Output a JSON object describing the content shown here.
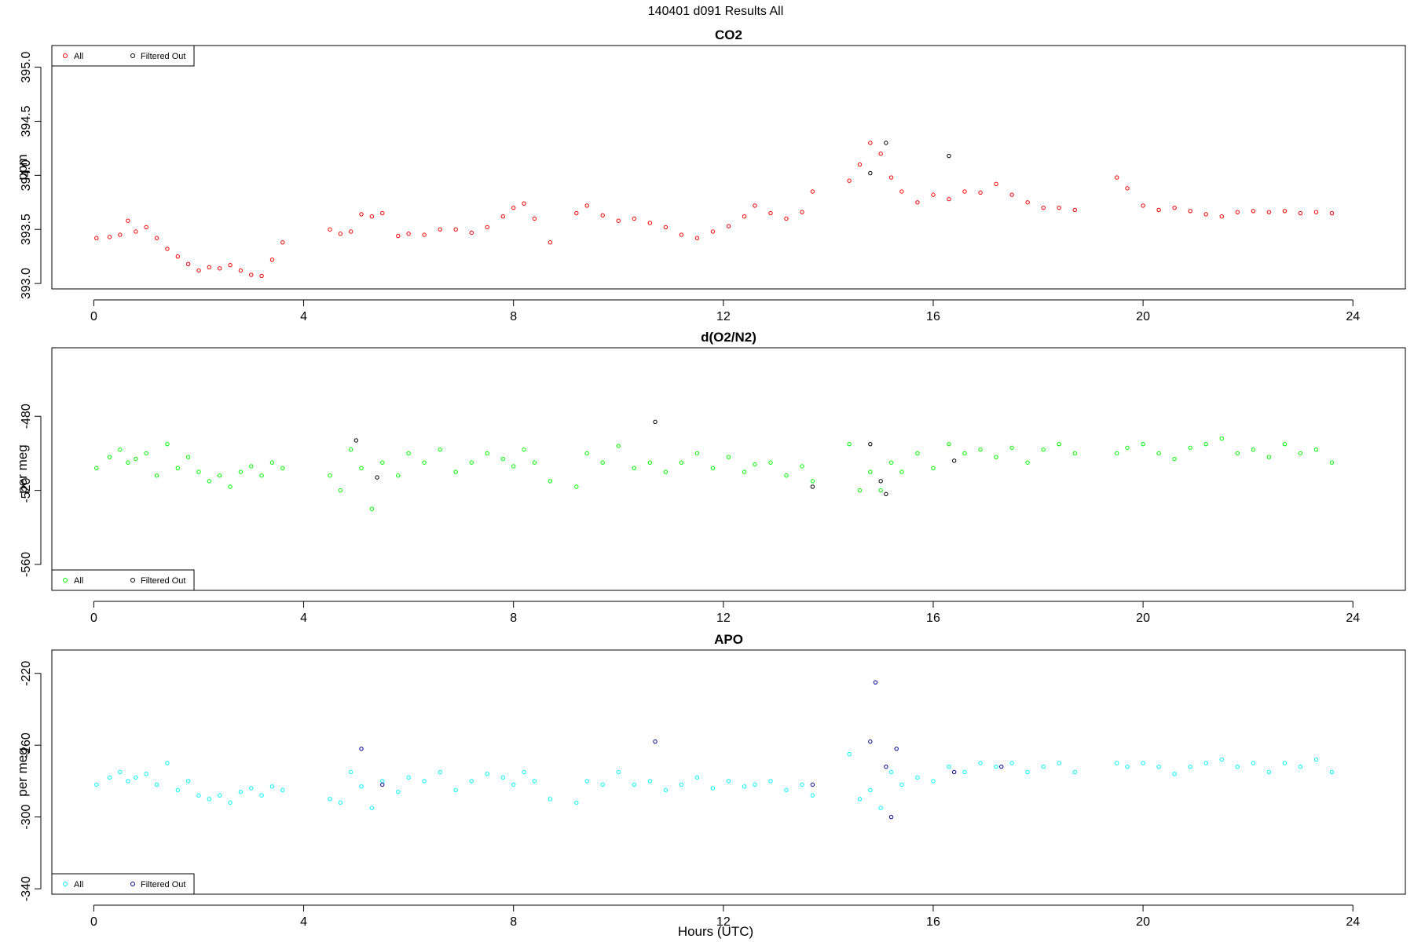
{
  "figure": {
    "main_title": "140401   d091   Results All",
    "xlabel": "Hours (UTC)"
  },
  "chart_data": [
    {
      "type": "scatter",
      "title": "CO2",
      "ylabel": "ppm",
      "xlim": [
        -0.8,
        25.0
      ],
      "ylim": [
        392.95,
        395.2
      ],
      "xticks": [
        0,
        4,
        8,
        12,
        16,
        20,
        24
      ],
      "yticks": [
        393.0,
        393.5,
        394.0,
        394.5,
        395.0
      ],
      "ytick_labels": [
        "393.0",
        "393.5",
        "394.0",
        "394.5",
        "395.0"
      ],
      "legend": {
        "position": "top-left",
        "entries": [
          "All",
          "Filtered Out"
        ]
      },
      "colors": {
        "all": "#ff0000",
        "filtered": "#000000"
      },
      "series": [
        {
          "name": "All",
          "x": [
            0.05,
            0.3,
            0.5,
            0.65,
            0.8,
            1.0,
            1.2,
            1.4,
            1.6,
            1.8,
            2.0,
            2.2,
            2.4,
            2.6,
            2.8,
            3.0,
            3.2,
            3.4,
            3.6,
            4.5,
            4.7,
            4.9,
            5.1,
            5.3,
            5.5,
            5.8,
            6.0,
            6.3,
            6.6,
            6.9,
            7.2,
            7.5,
            7.8,
            8.0,
            8.2,
            8.4,
            8.7,
            9.2,
            9.4,
            9.7,
            10.0,
            10.3,
            10.6,
            10.9,
            11.2,
            11.5,
            11.8,
            12.1,
            12.4,
            12.6,
            12.9,
            13.2,
            13.5,
            13.7,
            14.4,
            14.6,
            14.8,
            15.0,
            15.2,
            15.4,
            15.7,
            16.0,
            16.3,
            16.6,
            16.9,
            17.2,
            17.5,
            17.8,
            18.1,
            18.4,
            18.7,
            19.5,
            19.7,
            20.0,
            20.3,
            20.6,
            20.9,
            21.2,
            21.5,
            21.8,
            22.1,
            22.4,
            22.7,
            23.0,
            23.3,
            23.6
          ],
          "y": [
            393.42,
            393.43,
            393.45,
            393.58,
            393.48,
            393.52,
            393.42,
            393.32,
            393.25,
            393.18,
            393.12,
            393.15,
            393.14,
            393.17,
            393.12,
            393.08,
            393.07,
            393.22,
            393.38,
            393.5,
            393.46,
            393.48,
            393.64,
            393.62,
            393.65,
            393.44,
            393.46,
            393.45,
            393.5,
            393.5,
            393.47,
            393.52,
            393.62,
            393.7,
            393.74,
            393.6,
            393.38,
            393.65,
            393.72,
            393.63,
            393.58,
            393.6,
            393.56,
            393.52,
            393.45,
            393.42,
            393.48,
            393.53,
            393.62,
            393.72,
            393.65,
            393.6,
            393.66,
            393.85,
            393.95,
            394.1,
            394.3,
            394.2,
            393.98,
            393.85,
            393.75,
            393.82,
            393.78,
            393.85,
            393.84,
            393.92,
            393.82,
            393.75,
            393.7,
            393.7,
            393.68,
            393.98,
            393.88,
            393.72,
            393.68,
            393.7,
            393.67,
            393.64,
            393.62,
            393.66,
            393.67,
            393.66,
            393.67,
            393.65,
            393.66,
            393.65
          ]
        },
        {
          "name": "Filtered Out",
          "x": [
            14.8,
            15.1,
            16.3
          ],
          "y": [
            394.02,
            394.3,
            394.18
          ]
        }
      ]
    },
    {
      "type": "scatter",
      "title": "d(O2/N2)",
      "ylabel": "per meg",
      "xlim": [
        -0.8,
        25.0
      ],
      "ylim": [
        -574,
        -443
      ],
      "xticks": [
        0,
        4,
        8,
        12,
        16,
        20,
        24
      ],
      "yticks": [
        -560,
        -520,
        -480
      ],
      "ytick_labels": [
        "-560",
        "-520",
        "-480"
      ],
      "legend": {
        "position": "bottom-left",
        "entries": [
          "All",
          "Filtered Out"
        ]
      },
      "colors": {
        "all": "#00ff00",
        "filtered": "#000000"
      },
      "series": [
        {
          "name": "All",
          "x": [
            0.05,
            0.3,
            0.5,
            0.65,
            0.8,
            1.0,
            1.2,
            1.4,
            1.6,
            1.8,
            2.0,
            2.2,
            2.4,
            2.6,
            2.8,
            3.0,
            3.2,
            3.4,
            3.6,
            4.5,
            4.7,
            4.9,
            5.1,
            5.3,
            5.5,
            5.8,
            6.0,
            6.3,
            6.6,
            6.9,
            7.2,
            7.5,
            7.8,
            8.0,
            8.2,
            8.4,
            8.7,
            9.2,
            9.4,
            9.7,
            10.0,
            10.3,
            10.6,
            10.9,
            11.2,
            11.5,
            11.8,
            12.1,
            12.4,
            12.6,
            12.9,
            13.2,
            13.5,
            13.7,
            14.4,
            14.6,
            14.8,
            15.0,
            15.2,
            15.4,
            15.7,
            16.0,
            16.3,
            16.6,
            16.9,
            17.2,
            17.5,
            17.8,
            18.1,
            18.4,
            18.7,
            19.5,
            19.7,
            20.0,
            20.3,
            20.6,
            20.9,
            21.2,
            21.5,
            21.8,
            22.1,
            22.4,
            22.7,
            23.0,
            23.3,
            23.6
          ],
          "y": [
            -508,
            -502,
            -498,
            -505,
            -503,
            -500,
            -512,
            -495,
            -508,
            -502,
            -510,
            -515,
            -512,
            -518,
            -510,
            -507,
            -512,
            -505,
            -508,
            -512,
            -520,
            -498,
            -508,
            -530,
            -505,
            -512,
            -500,
            -505,
            -498,
            -510,
            -505,
            -500,
            -503,
            -507,
            -498,
            -505,
            -515,
            -518,
            -500,
            -505,
            -496,
            -508,
            -505,
            -510,
            -505,
            -500,
            -508,
            -502,
            -510,
            -506,
            -505,
            -512,
            -507,
            -515,
            -495,
            -520,
            -510,
            -520,
            -505,
            -510,
            -500,
            -508,
            -495,
            -500,
            -498,
            -502,
            -497,
            -505,
            -498,
            -495,
            -500,
            -500,
            -497,
            -495,
            -500,
            -503,
            -497,
            -495,
            -492,
            -500,
            -498,
            -502,
            -495,
            -500,
            -498,
            -505
          ]
        },
        {
          "name": "Filtered Out",
          "x": [
            5.0,
            5.4,
            10.7,
            14.8,
            15.0,
            15.1,
            16.4,
            13.7
          ],
          "y": [
            -493,
            -513,
            -483,
            -495,
            -515,
            -522,
            -504,
            -518
          ]
        }
      ]
    },
    {
      "type": "scatter",
      "title": "APO",
      "ylabel": "per meg",
      "xlim": [
        -0.8,
        25.0
      ],
      "ylim": [
        -343,
        -207
      ],
      "xticks": [
        0,
        4,
        8,
        12,
        16,
        20,
        24
      ],
      "yticks": [
        -340,
        -300,
        -260,
        -220
      ],
      "ytick_labels": [
        "-340",
        "-300",
        "-260",
        "-220"
      ],
      "legend": {
        "position": "bottom-left",
        "entries": [
          "All",
          "Filtered Out"
        ]
      },
      "colors": {
        "all": "#00ffff",
        "filtered": "#00008b"
      },
      "series": [
        {
          "name": "All",
          "x": [
            0.05,
            0.3,
            0.5,
            0.65,
            0.8,
            1.0,
            1.2,
            1.4,
            1.6,
            1.8,
            2.0,
            2.2,
            2.4,
            2.6,
            2.8,
            3.0,
            3.2,
            3.4,
            3.6,
            4.5,
            4.7,
            4.9,
            5.1,
            5.3,
            5.5,
            5.8,
            6.0,
            6.3,
            6.6,
            6.9,
            7.2,
            7.5,
            7.8,
            8.0,
            8.2,
            8.4,
            8.7,
            9.2,
            9.4,
            9.7,
            10.0,
            10.3,
            10.6,
            10.9,
            11.2,
            11.5,
            11.8,
            12.1,
            12.4,
            12.6,
            12.9,
            13.2,
            13.5,
            13.7,
            14.4,
            14.6,
            14.8,
            15.0,
            15.2,
            15.4,
            15.7,
            16.0,
            16.3,
            16.6,
            16.9,
            17.2,
            17.5,
            17.8,
            18.1,
            18.4,
            18.7,
            19.5,
            19.7,
            20.0,
            20.3,
            20.6,
            20.9,
            21.2,
            21.5,
            21.8,
            22.1,
            22.4,
            22.7,
            23.0,
            23.3,
            23.6
          ],
          "y": [
            -282,
            -278,
            -275,
            -280,
            -278,
            -276,
            -282,
            -270,
            -285,
            -280,
            -288,
            -290,
            -288,
            -292,
            -286,
            -284,
            -288,
            -283,
            -285,
            -290,
            -292,
            -275,
            -283,
            -295,
            -280,
            -286,
            -278,
            -280,
            -275,
            -285,
            -280,
            -276,
            -278,
            -282,
            -275,
            -280,
            -290,
            -292,
            -280,
            -282,
            -275,
            -282,
            -280,
            -285,
            -282,
            -278,
            -284,
            -280,
            -283,
            -282,
            -280,
            -285,
            -282,
            -288,
            -265,
            -290,
            -285,
            -295,
            -275,
            -282,
            -278,
            -280,
            -272,
            -275,
            -270,
            -272,
            -270,
            -275,
            -272,
            -270,
            -275,
            -270,
            -272,
            -270,
            -272,
            -276,
            -272,
            -270,
            -268,
            -272,
            -270,
            -275,
            -270,
            -272,
            -268,
            -275
          ]
        },
        {
          "name": "Filtered Out",
          "x": [
            5.1,
            5.5,
            10.7,
            14.8,
            14.9,
            15.1,
            15.2,
            15.3,
            16.4,
            17.3,
            13.7
          ],
          "y": [
            -262,
            -282,
            -258,
            -258,
            -225,
            -272,
            -300,
            -262,
            -275,
            -272,
            -282
          ]
        }
      ]
    }
  ]
}
